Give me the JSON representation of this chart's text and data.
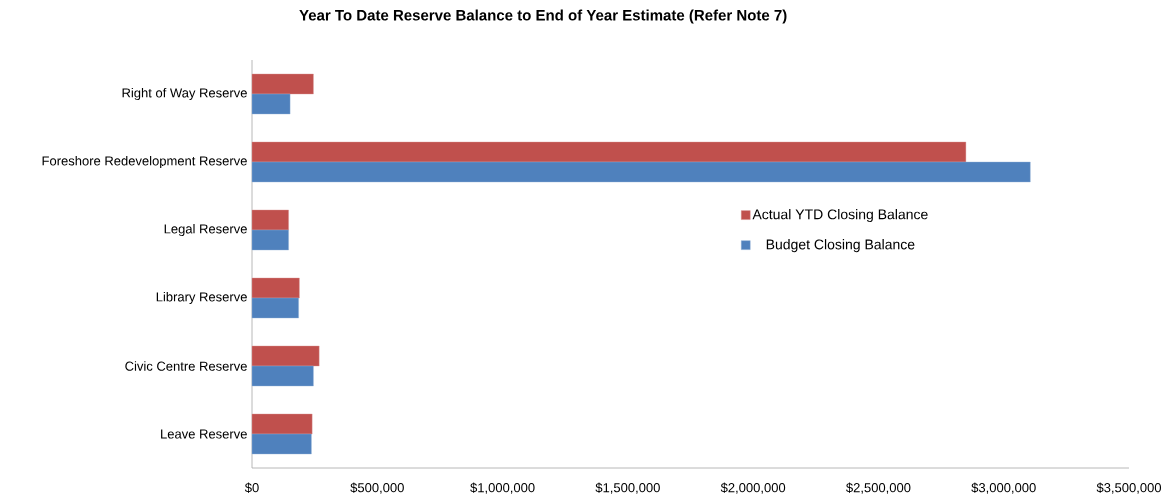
{
  "chart_data": {
    "type": "bar",
    "orientation": "horizontal",
    "title": "Year To Date Reserve Balance to End of Year Estimate (Refer Note 7)",
    "categories": [
      "Right of Way Reserve",
      "Foreshore Redevelopment Reserve",
      "Legal Reserve",
      "Library Reserve",
      "Civic Centre Reserve",
      "Leave Reserve"
    ],
    "series": [
      {
        "name": "Actual YTD Closing Balance",
        "color": "#c0504d",
        "values": [
          245000,
          2849000,
          146000,
          189000,
          268000,
          240000
        ]
      },
      {
        "name": "Budget Closing Balance",
        "color": "#4f81bd",
        "values": [
          152000,
          3106000,
          146000,
          186000,
          245000,
          237000
        ]
      }
    ],
    "xlim": [
      0,
      3500000
    ],
    "xticks": [
      {
        "value": 0,
        "label": "$0"
      },
      {
        "value": 500000,
        "label": "$500,000"
      },
      {
        "value": 1000000,
        "label": "$1,000,000"
      },
      {
        "value": 1500000,
        "label": "$1,500,000"
      },
      {
        "value": 2000000,
        "label": "$2,000,000"
      },
      {
        "value": 2500000,
        "label": "$2,500,000"
      },
      {
        "value": 3000000,
        "label": "$3,000,000"
      },
      {
        "value": 3500000,
        "label": "$3,500,000"
      }
    ],
    "legend": "right"
  }
}
